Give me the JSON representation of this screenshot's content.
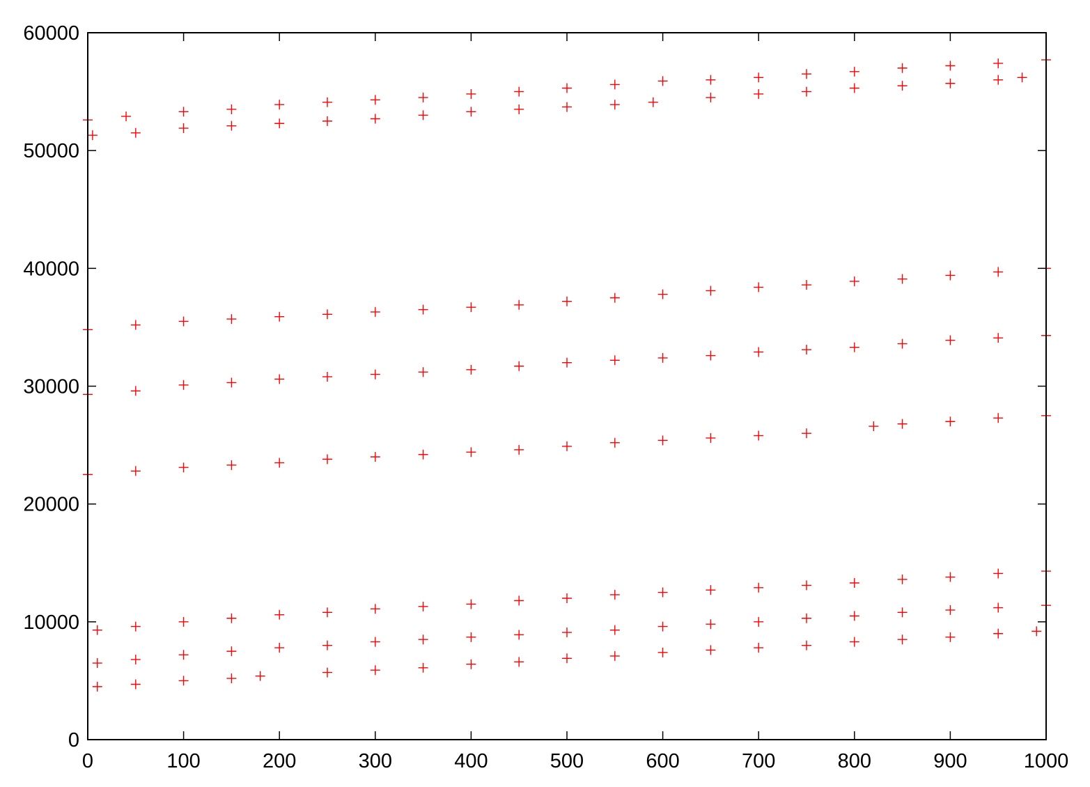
{
  "chart_data": {
    "type": "scatter",
    "title": "",
    "xlabel": "",
    "ylabel": "",
    "xlim": [
      0,
      1000
    ],
    "ylim": [
      0,
      60000
    ],
    "x_ticks": [
      "0",
      "100",
      "200",
      "300",
      "400",
      "500",
      "600",
      "700",
      "800",
      "900",
      "1000"
    ],
    "y_ticks": [
      "0",
      "10000",
      "20000",
      "30000",
      "40000",
      "50000",
      "60000"
    ],
    "grid": false,
    "legend": "none",
    "marker": "plus",
    "marker_color": "#ff0000",
    "series": [
      {
        "values": [
          [
            0,
            52600
          ],
          [
            40,
            52900
          ],
          [
            100,
            53300
          ],
          [
            150,
            53500
          ],
          [
            200,
            53900
          ],
          [
            250,
            54100
          ],
          [
            300,
            54300
          ],
          [
            350,
            54500
          ],
          [
            400,
            54800
          ],
          [
            450,
            55000
          ],
          [
            500,
            55300
          ],
          [
            550,
            55600
          ],
          [
            600,
            55900
          ],
          [
            650,
            56000
          ],
          [
            700,
            56200
          ],
          [
            750,
            56500
          ],
          [
            800,
            56700
          ],
          [
            850,
            57000
          ],
          [
            900,
            57200
          ],
          [
            950,
            57400
          ],
          [
            1000,
            57700
          ]
        ]
      },
      {
        "values": [
          [
            5,
            51300
          ],
          [
            50,
            51500
          ],
          [
            100,
            51900
          ],
          [
            150,
            52100
          ],
          [
            200,
            52300
          ],
          [
            250,
            52500
          ],
          [
            300,
            52700
          ],
          [
            350,
            53000
          ],
          [
            400,
            53300
          ],
          [
            450,
            53500
          ],
          [
            500,
            53700
          ],
          [
            550,
            53900
          ],
          [
            590,
            54100
          ],
          [
            650,
            54500
          ],
          [
            700,
            54800
          ],
          [
            750,
            55000
          ],
          [
            800,
            55300
          ],
          [
            850,
            55500
          ],
          [
            900,
            55700
          ],
          [
            950,
            56000
          ],
          [
            975,
            56200
          ]
        ]
      },
      {
        "values": [
          [
            0,
            34800
          ],
          [
            50,
            35200
          ],
          [
            100,
            35500
          ],
          [
            150,
            35700
          ],
          [
            200,
            35900
          ],
          [
            250,
            36100
          ],
          [
            300,
            36300
          ],
          [
            350,
            36500
          ],
          [
            400,
            36700
          ],
          [
            450,
            36900
          ],
          [
            500,
            37200
          ],
          [
            550,
            37500
          ],
          [
            600,
            37800
          ],
          [
            650,
            38100
          ],
          [
            700,
            38400
          ],
          [
            750,
            38600
          ],
          [
            800,
            38900
          ],
          [
            850,
            39100
          ],
          [
            900,
            39400
          ],
          [
            950,
            39700
          ],
          [
            1000,
            40000
          ]
        ]
      },
      {
        "values": [
          [
            0,
            29300
          ],
          [
            50,
            29600
          ],
          [
            100,
            30100
          ],
          [
            150,
            30300
          ],
          [
            200,
            30600
          ],
          [
            250,
            30800
          ],
          [
            300,
            31000
          ],
          [
            350,
            31200
          ],
          [
            400,
            31400
          ],
          [
            450,
            31700
          ],
          [
            500,
            32000
          ],
          [
            550,
            32200
          ],
          [
            600,
            32400
          ],
          [
            650,
            32600
          ],
          [
            700,
            32900
          ],
          [
            750,
            33100
          ],
          [
            800,
            33300
          ],
          [
            850,
            33600
          ],
          [
            900,
            33900
          ],
          [
            950,
            34100
          ],
          [
            1000,
            34300
          ]
        ]
      },
      {
        "values": [
          [
            0,
            22500
          ],
          [
            50,
            22800
          ],
          [
            100,
            23100
          ],
          [
            150,
            23300
          ],
          [
            200,
            23500
          ],
          [
            250,
            23800
          ],
          [
            300,
            24000
          ],
          [
            350,
            24200
          ],
          [
            400,
            24400
          ],
          [
            450,
            24600
          ],
          [
            500,
            24900
          ],
          [
            550,
            25200
          ],
          [
            600,
            25400
          ],
          [
            650,
            25600
          ],
          [
            700,
            25800
          ],
          [
            750,
            26000
          ],
          [
            820,
            26600
          ],
          [
            850,
            26800
          ],
          [
            900,
            27000
          ],
          [
            950,
            27300
          ],
          [
            1000,
            27500
          ]
        ]
      },
      {
        "values": [
          [
            10,
            9300
          ],
          [
            50,
            9600
          ],
          [
            100,
            10000
          ],
          [
            150,
            10300
          ],
          [
            200,
            10600
          ],
          [
            250,
            10800
          ],
          [
            300,
            11100
          ],
          [
            350,
            11300
          ],
          [
            400,
            11500
          ],
          [
            450,
            11800
          ],
          [
            500,
            12000
          ],
          [
            550,
            12300
          ],
          [
            600,
            12500
          ],
          [
            650,
            12700
          ],
          [
            700,
            12900
          ],
          [
            750,
            13100
          ],
          [
            800,
            13300
          ],
          [
            850,
            13600
          ],
          [
            900,
            13800
          ],
          [
            950,
            14100
          ],
          [
            1000,
            14300
          ]
        ]
      },
      {
        "values": [
          [
            10,
            6500
          ],
          [
            50,
            6800
          ],
          [
            100,
            7200
          ],
          [
            150,
            7500
          ],
          [
            200,
            7800
          ],
          [
            250,
            8000
          ],
          [
            300,
            8300
          ],
          [
            350,
            8500
          ],
          [
            400,
            8700
          ],
          [
            450,
            8900
          ],
          [
            500,
            9100
          ],
          [
            550,
            9300
          ],
          [
            600,
            9600
          ],
          [
            650,
            9800
          ],
          [
            700,
            10000
          ],
          [
            750,
            10300
          ],
          [
            800,
            10500
          ],
          [
            850,
            10800
          ],
          [
            900,
            11000
          ],
          [
            950,
            11200
          ],
          [
            1000,
            11400
          ]
        ]
      },
      {
        "values": [
          [
            10,
            4500
          ],
          [
            50,
            4700
          ],
          [
            100,
            5000
          ],
          [
            150,
            5200
          ],
          [
            180,
            5400
          ],
          [
            250,
            5700
          ],
          [
            300,
            5900
          ],
          [
            350,
            6100
          ],
          [
            400,
            6400
          ],
          [
            450,
            6600
          ],
          [
            500,
            6900
          ],
          [
            550,
            7100
          ],
          [
            600,
            7400
          ],
          [
            650,
            7600
          ],
          [
            700,
            7800
          ],
          [
            750,
            8000
          ],
          [
            800,
            8300
          ],
          [
            850,
            8500
          ],
          [
            900,
            8700
          ],
          [
            950,
            9000
          ],
          [
            990,
            9200
          ]
        ]
      }
    ]
  }
}
